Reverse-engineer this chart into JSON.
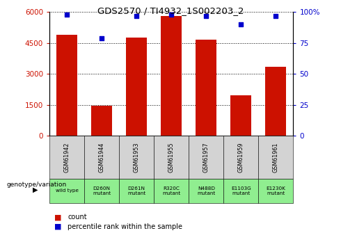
{
  "title": "GDS2570 / TI4932_1S002203_2",
  "categories": [
    "GSM61942",
    "GSM61944",
    "GSM61953",
    "GSM61955",
    "GSM61957",
    "GSM61959",
    "GSM61961"
  ],
  "genotype": [
    "wild type",
    "D260N\nmutant",
    "D261N\nmutant",
    "R320C\nmutant",
    "N488D\nmutant",
    "E1103G\nmutant",
    "E1230K\nmutant"
  ],
  "counts": [
    4900,
    1450,
    4750,
    5800,
    4650,
    1950,
    3350
  ],
  "percentile_ranks": [
    98,
    79,
    97,
    98,
    97,
    90,
    97
  ],
  "bar_color": "#cc1100",
  "dot_color": "#0000cc",
  "left_ylim": [
    0,
    6000
  ],
  "left_yticks": [
    0,
    1500,
    3000,
    4500,
    6000
  ],
  "right_ylim": [
    0,
    100
  ],
  "right_yticks": [
    0,
    25,
    50,
    75,
    100
  ],
  "left_tick_color": "#cc1100",
  "right_tick_color": "#0000cc",
  "background_color": "#ffffff",
  "genotype_bg_color": "#90ee90",
  "sample_bg_color": "#d3d3d3",
  "legend_count_color": "#cc1100",
  "legend_pct_color": "#0000cc",
  "genotype_label_color": "#000000"
}
